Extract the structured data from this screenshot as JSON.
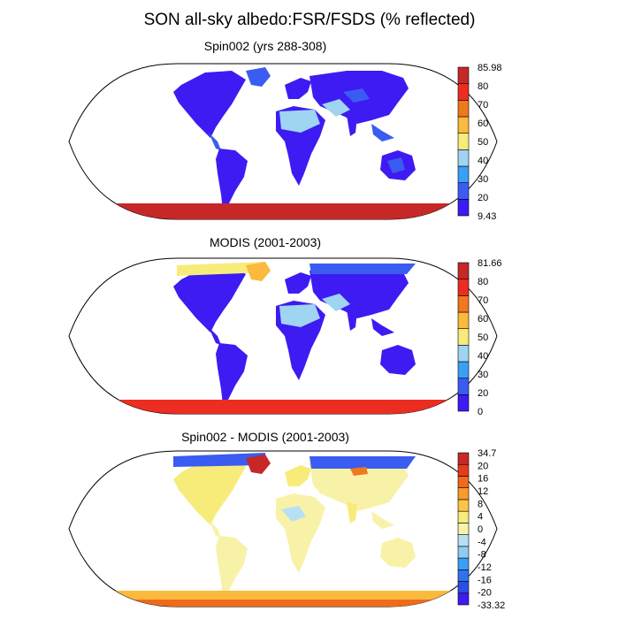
{
  "title": "SON all-sky albedo:FSR/FSDS (% reflected)",
  "panels": [
    {
      "title": "Spin002 (yrs 288-308)",
      "colorbar": {
        "colors": [
          "#3d1bf2",
          "#3a5cf0",
          "#3aa0f5",
          "#9fd4f3",
          "#f7ec7a",
          "#fbb93d",
          "#f0781d",
          "#ec2d21",
          "#c62828"
        ],
        "labels": [
          "9.43",
          "20",
          "30",
          "40",
          "50",
          "60",
          "70",
          "80",
          "85.98"
        ]
      }
    },
    {
      "title": "MODIS (2001-2003)",
      "colorbar": {
        "colors": [
          "#3d1bf2",
          "#3a5cf0",
          "#3aa0f5",
          "#9fd4f3",
          "#f7ec7a",
          "#fbb93d",
          "#f0781d",
          "#ec2d21",
          "#c62828"
        ],
        "labels": [
          "0",
          "20",
          "30",
          "40",
          "50",
          "60",
          "70",
          "80",
          "81.66"
        ]
      }
    },
    {
      "title": "Spin002 - MODIS (2001-2003)",
      "colorbar": {
        "colors": [
          "#3d1bf2",
          "#2b4ee8",
          "#2f73ef",
          "#3aa0f5",
          "#8fccf1",
          "#b8e0f5",
          "#f8f2a8",
          "#f7ec7a",
          "#fbc54a",
          "#f99a2a",
          "#ef6a1b",
          "#e63a1e",
          "#c62828"
        ],
        "labels": [
          "-33.32",
          "-20",
          "-16",
          "-12",
          "-8",
          "-4",
          "0",
          "4",
          "8",
          "12",
          "16",
          "20",
          "34.7"
        ]
      }
    }
  ]
}
